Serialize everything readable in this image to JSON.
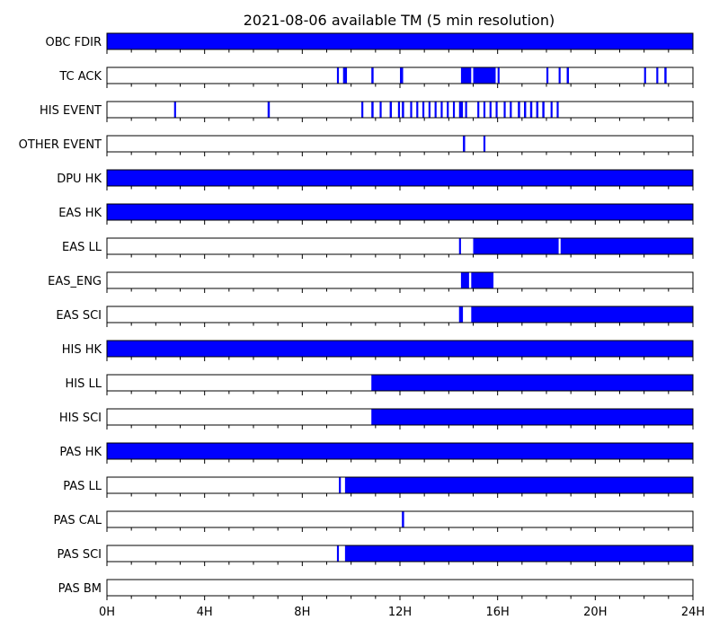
{
  "chart_data": {
    "type": "timeline",
    "title": "2021-08-06 available TM (5 min resolution)",
    "x_unit": "hours",
    "xlim": [
      0,
      24
    ],
    "x_ticks": [
      0,
      4,
      8,
      12,
      16,
      20,
      24
    ],
    "x_tick_labels": [
      "0H",
      "4H",
      "8H",
      "12H",
      "16H",
      "20H",
      "24H"
    ],
    "minor_tick_step_hours": 1,
    "fill_color": "#0000ff",
    "grid": false,
    "rows": [
      {
        "label": "OBC FDIR",
        "intervals": [
          [
            0,
            24
          ]
        ]
      },
      {
        "label": "TC ACK",
        "intervals": [
          [
            9.42,
            9.5
          ],
          [
            9.67,
            9.83
          ],
          [
            10.83,
            10.92
          ],
          [
            12.0,
            12.13
          ],
          [
            14.5,
            14.92
          ],
          [
            15.0,
            15.92
          ],
          [
            16.0,
            16.08
          ],
          [
            18.0,
            18.08
          ],
          [
            18.5,
            18.58
          ],
          [
            18.83,
            18.92
          ],
          [
            22.0,
            22.08
          ],
          [
            22.5,
            22.58
          ],
          [
            22.83,
            22.92
          ]
        ]
      },
      {
        "label": "HIS EVENT",
        "intervals": [
          [
            2.75,
            2.83
          ],
          [
            6.58,
            6.67
          ],
          [
            10.42,
            10.5
          ],
          [
            10.83,
            10.92
          ],
          [
            11.17,
            11.25
          ],
          [
            11.58,
            11.67
          ],
          [
            11.92,
            12.0
          ],
          [
            12.08,
            12.17
          ],
          [
            12.42,
            12.5
          ],
          [
            12.67,
            12.75
          ],
          [
            12.92,
            13.0
          ],
          [
            13.17,
            13.25
          ],
          [
            13.42,
            13.5
          ],
          [
            13.67,
            13.75
          ],
          [
            13.92,
            14.0
          ],
          [
            14.17,
            14.25
          ],
          [
            14.42,
            14.58
          ],
          [
            14.67,
            14.75
          ],
          [
            15.17,
            15.25
          ],
          [
            15.42,
            15.5
          ],
          [
            15.67,
            15.75
          ],
          [
            15.92,
            16.0
          ],
          [
            16.25,
            16.33
          ],
          [
            16.5,
            16.58
          ],
          [
            16.83,
            16.92
          ],
          [
            17.08,
            17.17
          ],
          [
            17.33,
            17.42
          ],
          [
            17.58,
            17.67
          ],
          [
            17.83,
            17.92
          ],
          [
            18.17,
            18.25
          ],
          [
            18.42,
            18.5
          ]
        ]
      },
      {
        "label": "OTHER EVENT",
        "intervals": [
          [
            14.58,
            14.67
          ],
          [
            15.42,
            15.5
          ]
        ]
      },
      {
        "label": "DPU HK",
        "intervals": [
          [
            0,
            24
          ]
        ]
      },
      {
        "label": "EAS HK",
        "intervals": [
          [
            0,
            24
          ]
        ]
      },
      {
        "label": "EAS LL",
        "intervals": [
          [
            14.42,
            14.5
          ],
          [
            15.0,
            18.5
          ],
          [
            18.58,
            24
          ]
        ]
      },
      {
        "label": "EAS_ENG",
        "intervals": [
          [
            14.5,
            14.83
          ],
          [
            14.92,
            15.83
          ]
        ]
      },
      {
        "label": "EAS SCI",
        "intervals": [
          [
            14.42,
            14.58
          ],
          [
            14.92,
            24
          ]
        ]
      },
      {
        "label": "HIS HK",
        "intervals": [
          [
            0,
            24
          ]
        ]
      },
      {
        "label": "HIS LL",
        "intervals": [
          [
            10.83,
            24
          ]
        ]
      },
      {
        "label": "HIS SCI",
        "intervals": [
          [
            10.83,
            24
          ]
        ]
      },
      {
        "label": "PAS HK",
        "intervals": [
          [
            0,
            24
          ]
        ]
      },
      {
        "label": "PAS LL",
        "intervals": [
          [
            9.5,
            9.58
          ],
          [
            9.75,
            24
          ]
        ]
      },
      {
        "label": "PAS CAL",
        "intervals": [
          [
            12.08,
            12.17
          ]
        ]
      },
      {
        "label": "PAS SCI",
        "intervals": [
          [
            9.42,
            9.5
          ],
          [
            9.75,
            24
          ]
        ]
      },
      {
        "label": "PAS BM",
        "intervals": []
      }
    ]
  }
}
